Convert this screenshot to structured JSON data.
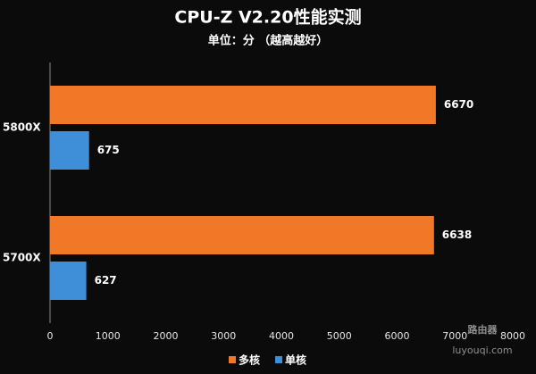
{
  "chart_data": {
    "type": "hbar",
    "title": "CPU-Z V2.20性能实测",
    "subtitle": "单位：分 （越高越好）",
    "categories": [
      "5800X",
      "5700X"
    ],
    "series": [
      {
        "name": "多核",
        "color": "#f07826",
        "values": [
          6670,
          6638
        ]
      },
      {
        "name": "单核",
        "color": "#3f8ed8",
        "values": [
          675,
          627
        ]
      }
    ],
    "xlim": [
      0,
      8000
    ],
    "xticks": [
      0,
      1000,
      2000,
      3000,
      4000,
      5000,
      6000,
      7000,
      8000
    ],
    "legend": "bottom",
    "watermark": [
      "路由器",
      "luyouqi.com"
    ]
  }
}
